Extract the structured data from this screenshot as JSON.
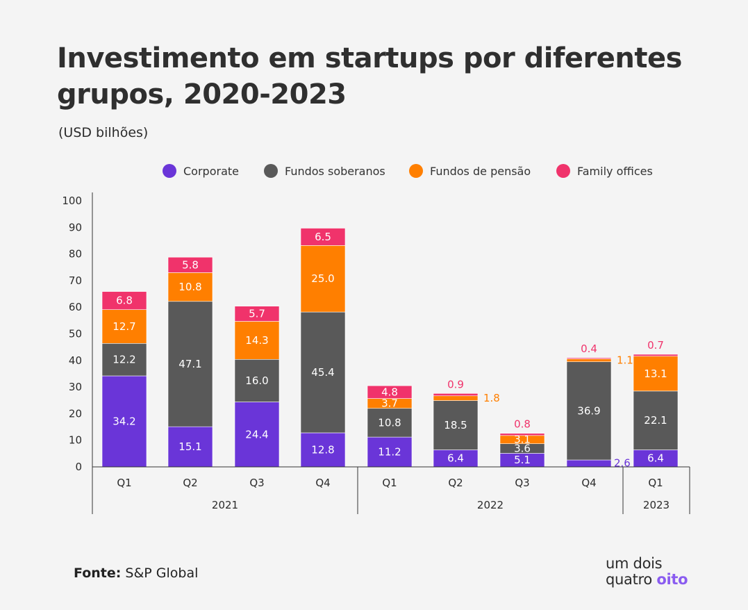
{
  "title": "Investimento em startups por diferentes grupos, 2020-2023",
  "subtitle": "(USD bilhões)",
  "source_label": "Fonte:",
  "source_value": "S&P Global",
  "logo": {
    "line1": "um dois",
    "line2_a": "quatro",
    "line2_b": "oito"
  },
  "colors": {
    "corporate": "#6a35d8",
    "fundos_soberanos": "#595959",
    "fundos_pensao": "#ff7f00",
    "family_offices": "#f0336b",
    "axis": "#333333"
  },
  "legend": [
    {
      "label": "Corporate",
      "color": "#6a35d8"
    },
    {
      "label": "Fundos soberanos",
      "color": "#595959"
    },
    {
      "label": "Fundos de pensão",
      "color": "#ff7f00"
    },
    {
      "label": "Family offices",
      "color": "#f0336b"
    }
  ],
  "chart_data": {
    "type": "bar",
    "stacked": true,
    "ylim": [
      0,
      100
    ],
    "yticks": [
      0,
      10,
      20,
      30,
      40,
      50,
      60,
      70,
      80,
      90,
      100
    ],
    "categories": [
      "Q1",
      "Q2",
      "Q3",
      "Q4",
      "Q1",
      "Q2",
      "Q3",
      "Q4",
      "Q1"
    ],
    "groups": [
      {
        "label": "2021",
        "categories": [
          0,
          1,
          2,
          3
        ]
      },
      {
        "label": "2022",
        "categories": [
          4,
          5,
          6,
          7
        ]
      },
      {
        "label": "2023",
        "categories": [
          8
        ]
      }
    ],
    "series": [
      {
        "name": "Corporate",
        "values": [
          34.2,
          15.1,
          24.4,
          12.8,
          11.2,
          6.4,
          5.1,
          2.6,
          6.4
        ]
      },
      {
        "name": "Fundos soberanos",
        "values": [
          12.2,
          47.1,
          16.0,
          45.4,
          10.8,
          18.5,
          3.6,
          36.9,
          22.1
        ]
      },
      {
        "name": "Fundos de pensão",
        "values": [
          12.7,
          10.8,
          14.3,
          25.0,
          3.7,
          1.8,
          3.1,
          1.1,
          13.1
        ]
      },
      {
        "name": "Family offices",
        "values": [
          6.8,
          5.8,
          5.7,
          6.5,
          4.8,
          0.9,
          0.8,
          0.4,
          0.7
        ]
      }
    ],
    "labels": [
      [
        "34.2",
        "15.1",
        "24.4",
        "12.8",
        "11.2",
        "6.4",
        "5.1",
        "2.6",
        "6.4"
      ],
      [
        "12.2",
        "47.1",
        "16.0",
        "45.4",
        "10.8",
        "18.5",
        "3.6",
        "36.9",
        "22.1"
      ],
      [
        "12.7",
        "10.8",
        "14.3",
        "25.0",
        "3.7",
        "1.8",
        "3.1",
        "1.1",
        "13.1"
      ],
      [
        "6.8",
        "5.8",
        "5.7",
        "6.5",
        "4.8",
        "0.9",
        "0.8",
        "0.4",
        "0.7"
      ]
    ],
    "grid": false,
    "legend_position": "top"
  }
}
